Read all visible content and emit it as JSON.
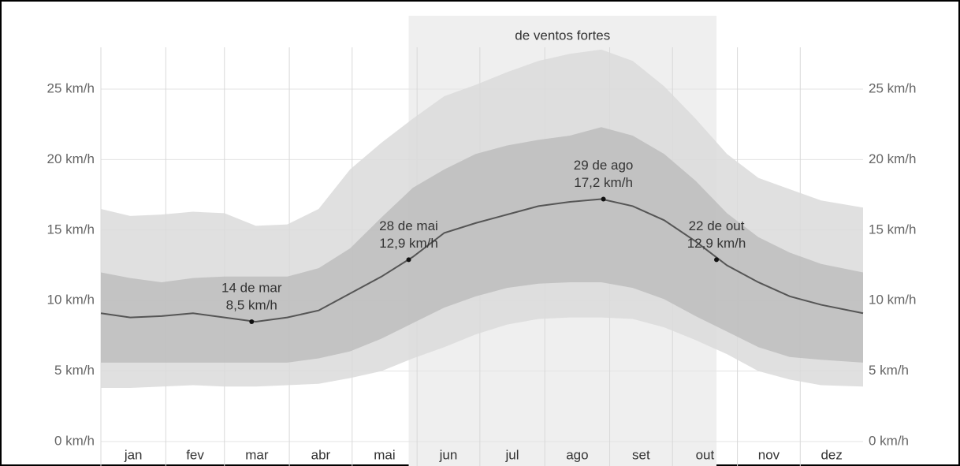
{
  "chart_data": {
    "type": "band-line",
    "highlight": {
      "label": "de ventos fortes",
      "x": [
        148,
        295
      ],
      "color": "#efefef"
    },
    "x": [
      1,
      15,
      30,
      45,
      60,
      75,
      90,
      105,
      120,
      135,
      150,
      165,
      180,
      195,
      210,
      225,
      240,
      255,
      270,
      285,
      300,
      315,
      330,
      345,
      365
    ],
    "xlim": [
      1,
      365
    ],
    "xticks": [
      {
        "value": 1,
        "label": "jan"
      },
      {
        "value": 32,
        "label": "fev"
      },
      {
        "value": 60,
        "label": "mar"
      },
      {
        "value": 91,
        "label": "abr"
      },
      {
        "value": 121,
        "label": "mai"
      },
      {
        "value": 152,
        "label": "jun"
      },
      {
        "value": 182,
        "label": "jul"
      },
      {
        "value": 213,
        "label": "ago"
      },
      {
        "value": 244,
        "label": "set"
      },
      {
        "value": 274,
        "label": "out"
      },
      {
        "value": 305,
        "label": "nov"
      },
      {
        "value": 335,
        "label": "dez"
      }
    ],
    "ylim": [
      0,
      30
    ],
    "yticks": [
      {
        "value": 0,
        "label": "0 km/h"
      },
      {
        "value": 5,
        "label": "5 km/h"
      },
      {
        "value": 10,
        "label": "10 km/h"
      },
      {
        "value": 15,
        "label": "15 km/h"
      },
      {
        "value": 20,
        "label": "20 km/h"
      },
      {
        "value": 25,
        "label": "25 km/h"
      }
    ],
    "grid": true,
    "bands": [
      {
        "color": "#dadada",
        "high": [
          16.5,
          16.0,
          16.1,
          16.3,
          16.2,
          15.3,
          15.4,
          16.5,
          19.3,
          21.2,
          22.9,
          24.5,
          25.3,
          26.2,
          27.0,
          27.5,
          27.8,
          27.0,
          25.2,
          22.9,
          20.4,
          18.7,
          17.9,
          17.1,
          16.6
        ],
        "low": [
          3.8,
          3.8,
          3.9,
          4.0,
          3.9,
          3.9,
          4.0,
          4.1,
          4.5,
          5.0,
          5.9,
          6.7,
          7.6,
          8.3,
          8.7,
          8.8,
          8.8,
          8.7,
          8.1,
          7.2,
          6.2,
          5.0,
          4.4,
          4.0,
          3.9
        ]
      },
      {
        "color": "#bdbdbd",
        "high": [
          12.0,
          11.6,
          11.3,
          11.6,
          11.7,
          11.7,
          11.7,
          12.3,
          13.7,
          15.9,
          18.0,
          19.3,
          20.4,
          21.0,
          21.4,
          21.7,
          22.3,
          21.7,
          20.4,
          18.5,
          16.2,
          14.5,
          13.4,
          12.6,
          12.0
        ],
        "low": [
          5.6,
          5.6,
          5.6,
          5.6,
          5.6,
          5.6,
          5.6,
          5.9,
          6.4,
          7.3,
          8.4,
          9.5,
          10.3,
          10.9,
          11.2,
          11.3,
          11.3,
          10.9,
          10.1,
          8.9,
          7.8,
          6.7,
          6.0,
          5.8,
          5.6
        ]
      }
    ],
    "series": [
      {
        "color": "#555555",
        "values": [
          9.1,
          8.8,
          8.9,
          9.1,
          8.8,
          8.5,
          8.8,
          9.3,
          10.5,
          11.7,
          13.1,
          14.8,
          15.5,
          16.1,
          16.7,
          17.0,
          17.2,
          16.7,
          15.7,
          14.2,
          12.5,
          11.3,
          10.3,
          9.7,
          9.1
        ]
      }
    ],
    "annotations": [
      {
        "x": 73,
        "value": 8.5,
        "label": "14 de mar",
        "value_label": "8,5 km/h"
      },
      {
        "x": 148,
        "value": 12.9,
        "label": "28 de mai",
        "value_label": "12,9 km/h"
      },
      {
        "x": 241,
        "value": 17.2,
        "label": "29 de ago",
        "value_label": "17,2 km/h"
      },
      {
        "x": 295,
        "value": 12.9,
        "label": "22 de out",
        "value_label": "12,9 km/h"
      }
    ]
  }
}
